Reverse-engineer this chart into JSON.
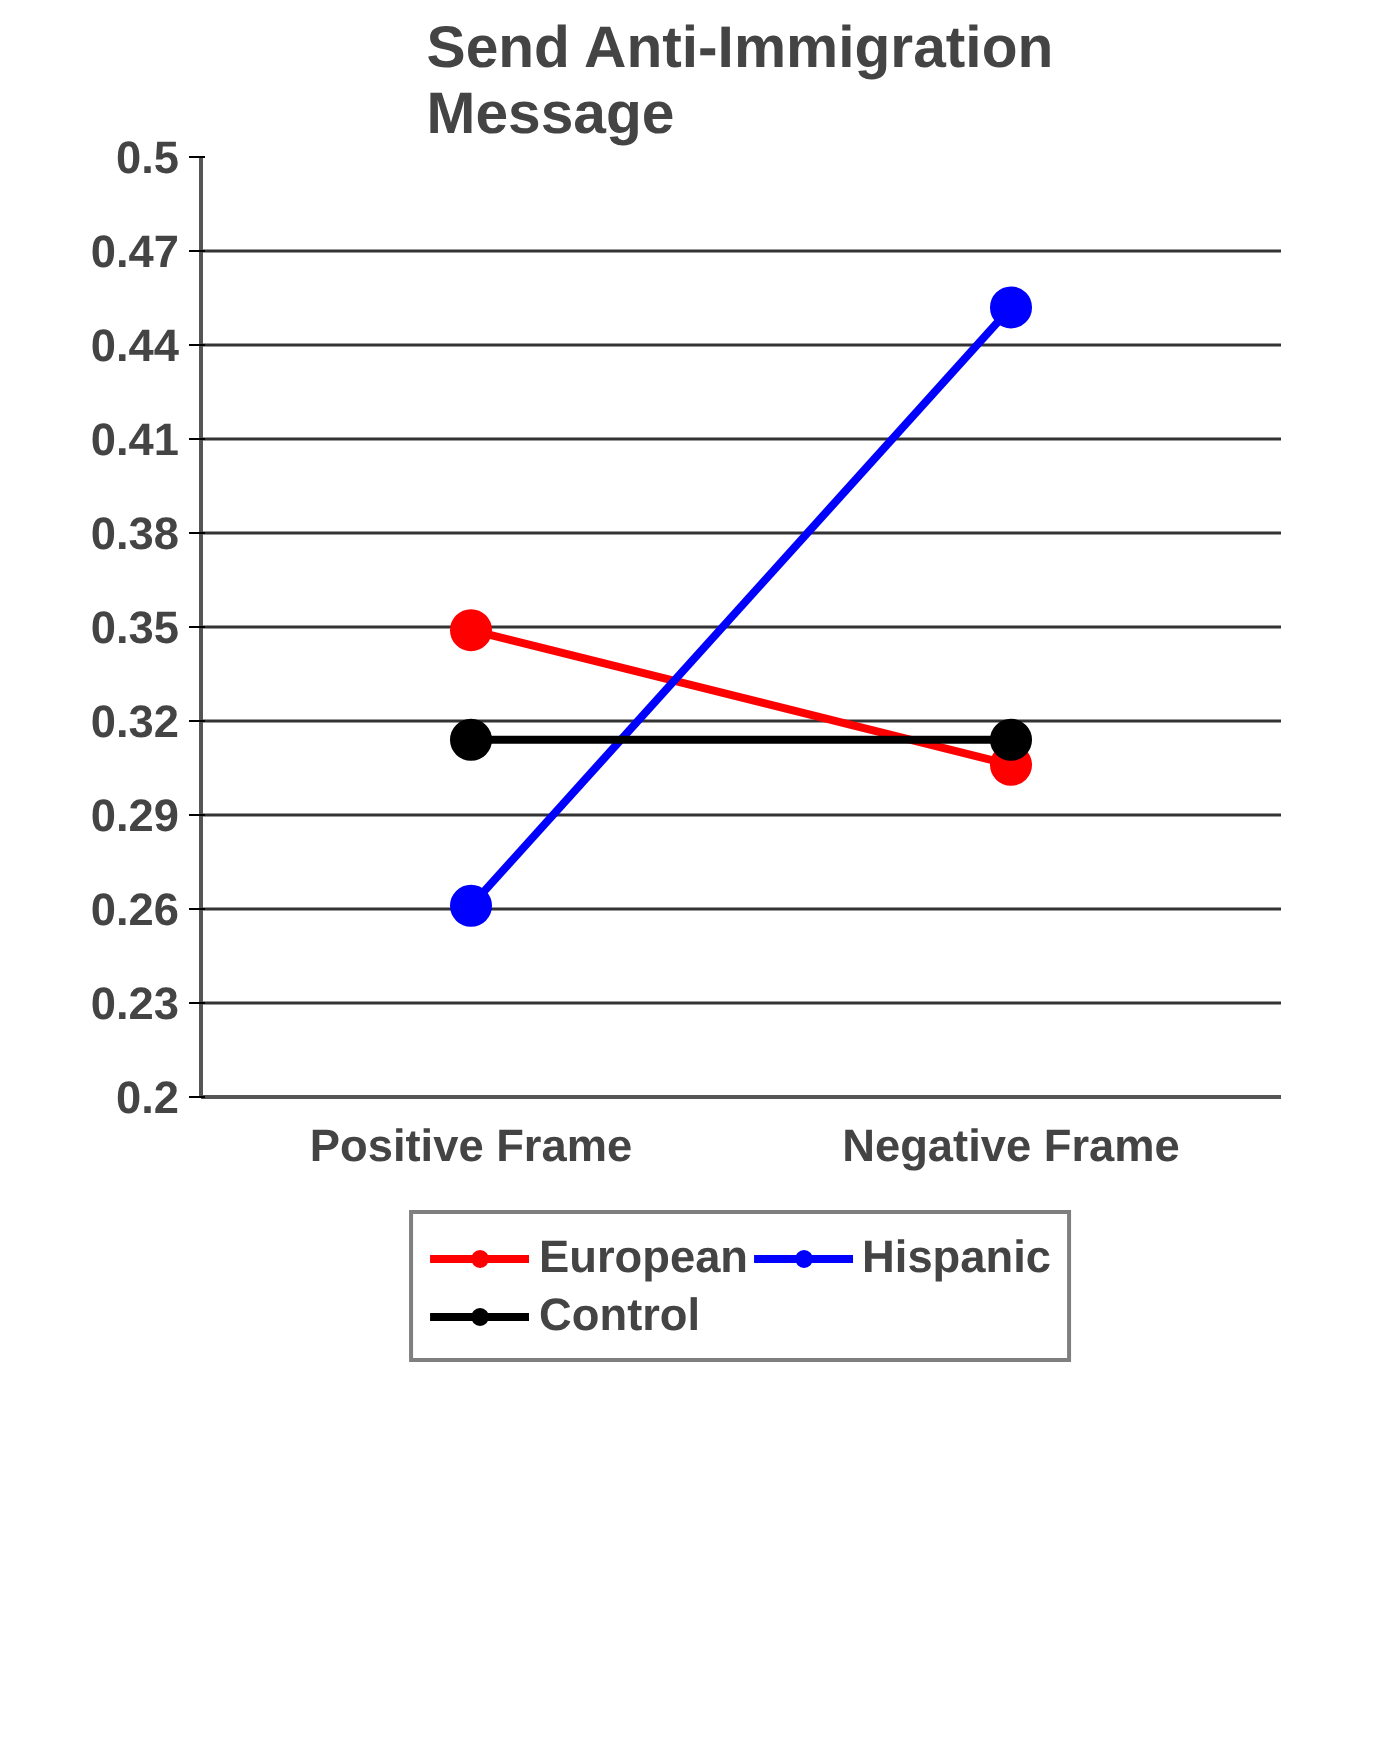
{
  "chart_data": {
    "type": "line",
    "title": "Send Anti-Immigration Message",
    "categories": [
      "Positive Frame",
      "Negative Frame"
    ],
    "series": [
      {
        "name": "European",
        "color": "#ff0000",
        "values": [
          0.349,
          0.306
        ]
      },
      {
        "name": "Hispanic",
        "color": "#0000ff",
        "values": [
          0.261,
          0.452
        ]
      },
      {
        "name": "Control",
        "color": "#000000",
        "values": [
          0.314,
          0.314
        ]
      }
    ],
    "ylim": [
      0.2,
      0.5
    ],
    "yticks": [
      0.2,
      0.23,
      0.26,
      0.29,
      0.32,
      0.35,
      0.38,
      0.41,
      0.44,
      0.47,
      0.5
    ],
    "grid": "y",
    "legend": "bottom",
    "marker": "circle",
    "line_style": "solid"
  }
}
